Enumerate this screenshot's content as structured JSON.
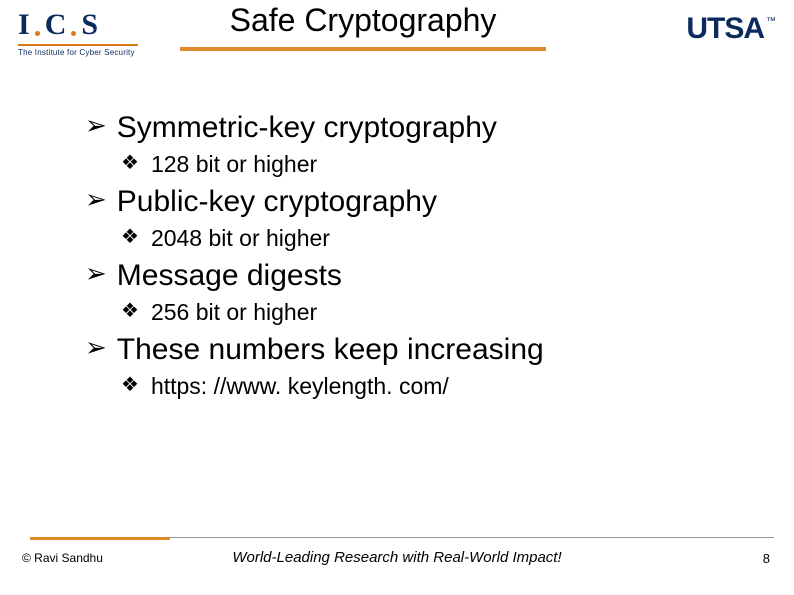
{
  "header": {
    "ics_letters": [
      "I",
      "C",
      "S"
    ],
    "ics_subtitle": "The Institute for Cyber Security",
    "title": "Safe Cryptography",
    "utsa": "UTSA",
    "utsa_tm": "™"
  },
  "colors": {
    "accent_orange": "#e08a2c",
    "brand_navy": "#0a2b5c",
    "text": "#000000",
    "background": "#ffffff"
  },
  "bullets": {
    "main": "➢",
    "sub": "❖"
  },
  "content": [
    {
      "text": "Symmetric-key cryptography",
      "sub": [
        {
          "text": "128 bit or higher"
        }
      ]
    },
    {
      "text": "Public-key cryptography",
      "sub": [
        {
          "text": "2048 bit or higher"
        }
      ]
    },
    {
      "text": "Message digests",
      "sub": [
        {
          "text": "256 bit or higher"
        }
      ]
    },
    {
      "text": "These numbers keep increasing",
      "sub": [
        {
          "text": "https: //www. keylength. com/"
        }
      ]
    }
  ],
  "footer": {
    "copyright": "© Ravi  Sandhu",
    "tagline": "World-Leading Research with Real-World Impact!",
    "page": "8"
  },
  "typography": {
    "title_fontsize": 32,
    "main_fontsize": 30,
    "sub_fontsize": 23,
    "footer_fontsize": 13
  }
}
